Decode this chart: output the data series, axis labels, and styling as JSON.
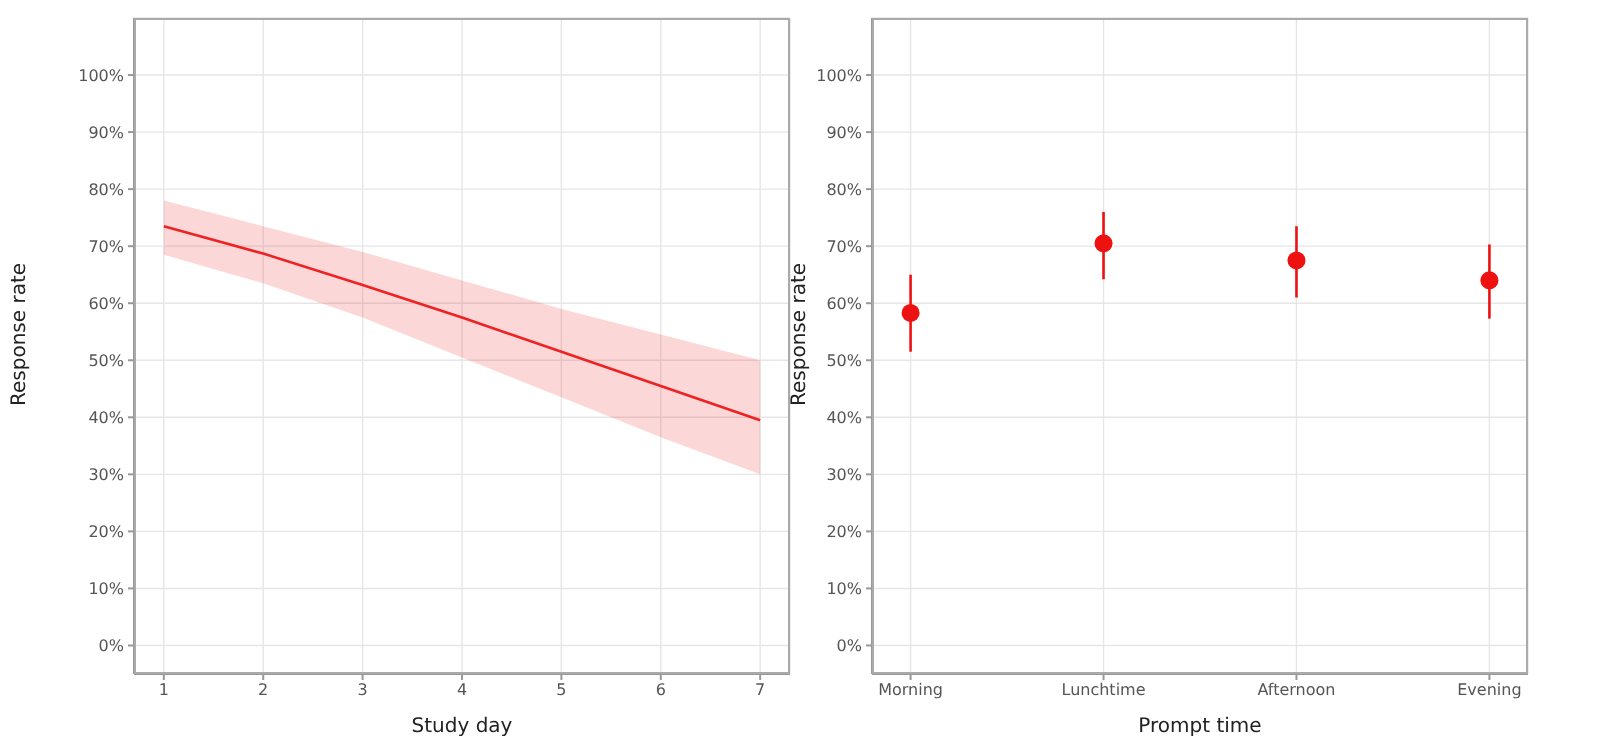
{
  "chart_data": [
    {
      "type": "line",
      "xlabel": "Study day",
      "ylabel": "Response rate",
      "x": [
        1,
        2,
        3,
        4,
        5,
        6,
        7
      ],
      "series": [
        {
          "color": "#ee2222",
          "values": [
            73.5,
            68.7,
            63.2,
            57.5,
            51.5,
            45.5,
            39.5
          ],
          "lower": [
            68.5,
            63.5,
            57.5,
            50.5,
            43.5,
            36.5,
            30
          ],
          "upper": [
            78,
            73.5,
            69,
            64,
            59,
            54.5,
            50
          ]
        }
      ],
      "xlim": [
        0.7,
        7.3
      ],
      "xticks": [
        1,
        2,
        3,
        4,
        5,
        6,
        7
      ],
      "ylim": [
        -5,
        110
      ],
      "yticks": [
        {
          "value": 0,
          "label": "0%"
        },
        {
          "value": 10,
          "label": "10%"
        },
        {
          "value": 20,
          "label": "20%"
        },
        {
          "value": 30,
          "label": "30%"
        },
        {
          "value": 40,
          "label": "40%"
        },
        {
          "value": 50,
          "label": "50%"
        },
        {
          "value": 60,
          "label": "60%"
        },
        {
          "value": 70,
          "label": "70%"
        },
        {
          "value": 80,
          "label": "80%"
        },
        {
          "value": 90,
          "label": "90%"
        },
        {
          "value": 100,
          "label": "100%"
        }
      ],
      "grid": true,
      "legend": false,
      "marker": "none",
      "line_style": "solid"
    },
    {
      "type": "scatter",
      "xlabel": "Prompt time",
      "ylabel": "Response rate",
      "categories": [
        "Morning",
        "Lunchtime",
        "Afternoon",
        "Evening"
      ],
      "series": [
        {
          "color": "#ee1111",
          "values": [
            58.3,
            70.5,
            67.5,
            64
          ],
          "errors": [
            [
              51.5,
              65
            ],
            [
              64.2,
              76
            ],
            [
              61,
              73.5
            ],
            [
              57.3,
              70.3
            ]
          ]
        }
      ],
      "ylim": [
        -5,
        110
      ],
      "yticks": [
        {
          "value": 0,
          "label": "0%"
        },
        {
          "value": 10,
          "label": "10%"
        },
        {
          "value": 20,
          "label": "20%"
        },
        {
          "value": 30,
          "label": "30%"
        },
        {
          "value": 40,
          "label": "40%"
        },
        {
          "value": 50,
          "label": "50%"
        },
        {
          "value": 60,
          "label": "60%"
        },
        {
          "value": 70,
          "label": "70%"
        },
        {
          "value": 80,
          "label": "80%"
        },
        {
          "value": 90,
          "label": "90%"
        },
        {
          "value": 100,
          "label": "100%"
        }
      ],
      "grid": true,
      "legend": false,
      "marker": "circle"
    }
  ]
}
